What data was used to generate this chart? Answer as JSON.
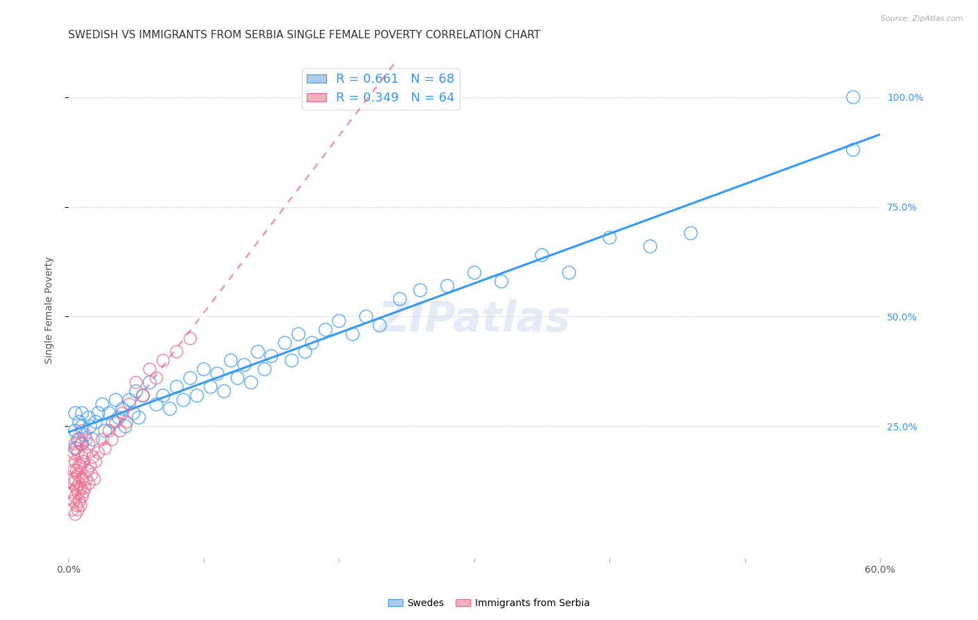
{
  "title": "SWEDISH VS IMMIGRANTS FROM SERBIA SINGLE FEMALE POVERTY CORRELATION CHART",
  "source": "Source: ZipAtlas.com",
  "ylabel": "Single Female Poverty",
  "xlim": [
    0.0,
    0.6
  ],
  "ylim": [
    -0.05,
    1.08
  ],
  "xticks": [
    0.0,
    0.1,
    0.2,
    0.3,
    0.4,
    0.5,
    0.6
  ],
  "xticklabels": [
    "0.0%",
    "",
    "",
    "",
    "",
    "",
    "60.0%"
  ],
  "yticks_right": [
    0.25,
    0.5,
    0.75,
    1.0
  ],
  "ytick_right_labels": [
    "25.0%",
    "50.0%",
    "75.0%",
    "100.0%"
  ],
  "watermark": "ZIPatlas",
  "swedes_color": "#aaccee",
  "serbia_color": "#f0b0be",
  "regression_blue_color": "#3399ff",
  "regression_pink_color": "#ee6688",
  "R_swedes": 0.661,
  "N_swedes": 68,
  "R_serbia": 0.349,
  "N_serbia": 64,
  "swedes_x": [
    0.005,
    0.005,
    0.005,
    0.007,
    0.008,
    0.01,
    0.01,
    0.01,
    0.012,
    0.015,
    0.016,
    0.018,
    0.02,
    0.022,
    0.025,
    0.027,
    0.03,
    0.033,
    0.035,
    0.037,
    0.04,
    0.042,
    0.045,
    0.048,
    0.05,
    0.052,
    0.055,
    0.06,
    0.065,
    0.07,
    0.075,
    0.08,
    0.085,
    0.09,
    0.095,
    0.1,
    0.105,
    0.11,
    0.115,
    0.12,
    0.125,
    0.13,
    0.135,
    0.14,
    0.145,
    0.15,
    0.16,
    0.165,
    0.17,
    0.175,
    0.18,
    0.19,
    0.2,
    0.21,
    0.22,
    0.23,
    0.245,
    0.26,
    0.28,
    0.3,
    0.32,
    0.35,
    0.37,
    0.4,
    0.43,
    0.46,
    0.58,
    0.58
  ],
  "swedes_y": [
    0.2,
    0.24,
    0.28,
    0.22,
    0.26,
    0.21,
    0.25,
    0.28,
    0.23,
    0.27,
    0.25,
    0.22,
    0.26,
    0.28,
    0.3,
    0.24,
    0.28,
    0.26,
    0.31,
    0.27,
    0.29,
    0.25,
    0.31,
    0.28,
    0.33,
    0.27,
    0.32,
    0.35,
    0.3,
    0.32,
    0.29,
    0.34,
    0.31,
    0.36,
    0.32,
    0.38,
    0.34,
    0.37,
    0.33,
    0.4,
    0.36,
    0.39,
    0.35,
    0.42,
    0.38,
    0.41,
    0.44,
    0.4,
    0.46,
    0.42,
    0.44,
    0.47,
    0.49,
    0.46,
    0.5,
    0.48,
    0.54,
    0.56,
    0.57,
    0.6,
    0.58,
    0.64,
    0.6,
    0.68,
    0.66,
    0.69,
    0.88,
    1.0
  ],
  "serbia_x": [
    0.003,
    0.003,
    0.003,
    0.003,
    0.004,
    0.004,
    0.004,
    0.004,
    0.005,
    0.005,
    0.005,
    0.005,
    0.005,
    0.006,
    0.006,
    0.006,
    0.006,
    0.007,
    0.007,
    0.007,
    0.007,
    0.008,
    0.008,
    0.008,
    0.008,
    0.009,
    0.009,
    0.009,
    0.009,
    0.01,
    0.01,
    0.01,
    0.01,
    0.011,
    0.011,
    0.012,
    0.012,
    0.013,
    0.013,
    0.014,
    0.015,
    0.015,
    0.016,
    0.017,
    0.018,
    0.019,
    0.02,
    0.022,
    0.025,
    0.027,
    0.03,
    0.032,
    0.035,
    0.038,
    0.04,
    0.043,
    0.045,
    0.05,
    0.055,
    0.06,
    0.065,
    0.07,
    0.08,
    0.09
  ],
  "serbia_y": [
    0.06,
    0.1,
    0.13,
    0.16,
    0.08,
    0.12,
    0.15,
    0.19,
    0.05,
    0.09,
    0.13,
    0.17,
    0.21,
    0.07,
    0.11,
    0.15,
    0.2,
    0.06,
    0.1,
    0.14,
    0.19,
    0.08,
    0.12,
    0.16,
    0.22,
    0.07,
    0.11,
    0.16,
    0.21,
    0.09,
    0.13,
    0.18,
    0.24,
    0.1,
    0.17,
    0.11,
    0.19,
    0.13,
    0.22,
    0.15,
    0.12,
    0.21,
    0.16,
    0.14,
    0.18,
    0.13,
    0.17,
    0.19,
    0.22,
    0.2,
    0.24,
    0.22,
    0.26,
    0.24,
    0.28,
    0.26,
    0.3,
    0.35,
    0.32,
    0.38,
    0.36,
    0.4,
    0.42,
    0.45
  ],
  "background_color": "#ffffff",
  "grid_color": "#dddddd",
  "title_fontsize": 11,
  "axis_label_fontsize": 10,
  "tick_fontsize": 10,
  "legend_fontsize": 13
}
